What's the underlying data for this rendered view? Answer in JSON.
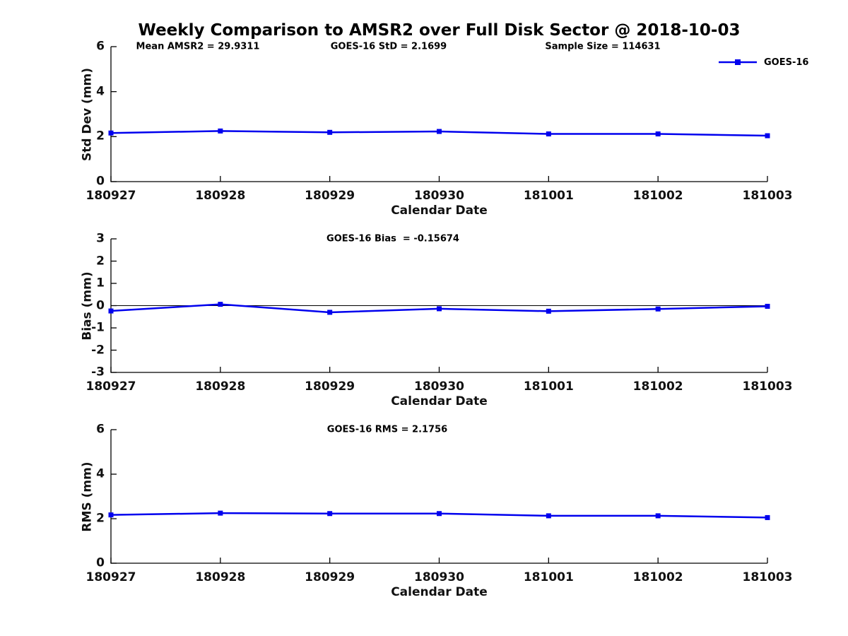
{
  "title": "Weekly Comparison to AMSR2 over Full Disk Sector @ 2018-10-03",
  "x_label": "Calendar Date",
  "legend": {
    "label": "GOES-16"
  },
  "colors": {
    "line": "#0000ee",
    "axis": "#000000",
    "text": "#000000"
  },
  "chart_data": [
    {
      "type": "line",
      "panel": "std-dev",
      "ylabel": "Std Dev (mm)",
      "annotations": [
        "Mean AMSR2 = 29.9311",
        "GOES-16 StD = 2.1699",
        "Sample Size = 114631"
      ],
      "categories": [
        "180927",
        "180928",
        "180929",
        "180930",
        "181001",
        "181002",
        "181003"
      ],
      "series": [
        {
          "name": "GOES-16",
          "values": [
            2.16,
            2.25,
            2.19,
            2.23,
            2.12,
            2.12,
            2.04
          ]
        }
      ],
      "ylim": [
        0,
        6
      ],
      "yticks": [
        6,
        4,
        2,
        0
      ],
      "zero_line": false,
      "grid": false,
      "legend_position": "top-right"
    },
    {
      "type": "line",
      "panel": "bias",
      "ylabel": "Bias (mm)",
      "annotations": [
        "GOES-16 Bias  = -0.15674"
      ],
      "categories": [
        "180927",
        "180928",
        "180929",
        "180930",
        "181001",
        "181002",
        "181003"
      ],
      "series": [
        {
          "name": "GOES-16",
          "values": [
            -0.24,
            0.06,
            -0.3,
            -0.14,
            -0.25,
            -0.15,
            -0.03
          ]
        }
      ],
      "ylim": [
        -3,
        3
      ],
      "yticks": [
        3,
        2,
        1,
        0,
        -1,
        -2,
        -3
      ],
      "zero_line": true,
      "grid": false
    },
    {
      "type": "line",
      "panel": "rms",
      "ylabel": "RMS (mm)",
      "annotations": [
        "GOES-16 RMS = 2.1756"
      ],
      "categories": [
        "180927",
        "180928",
        "180929",
        "180930",
        "181001",
        "181002",
        "181003"
      ],
      "series": [
        {
          "name": "GOES-16",
          "values": [
            2.17,
            2.25,
            2.23,
            2.23,
            2.13,
            2.13,
            2.05
          ]
        }
      ],
      "ylim": [
        0,
        6
      ],
      "yticks": [
        6,
        4,
        2,
        0
      ],
      "zero_line": false,
      "grid": false
    }
  ]
}
